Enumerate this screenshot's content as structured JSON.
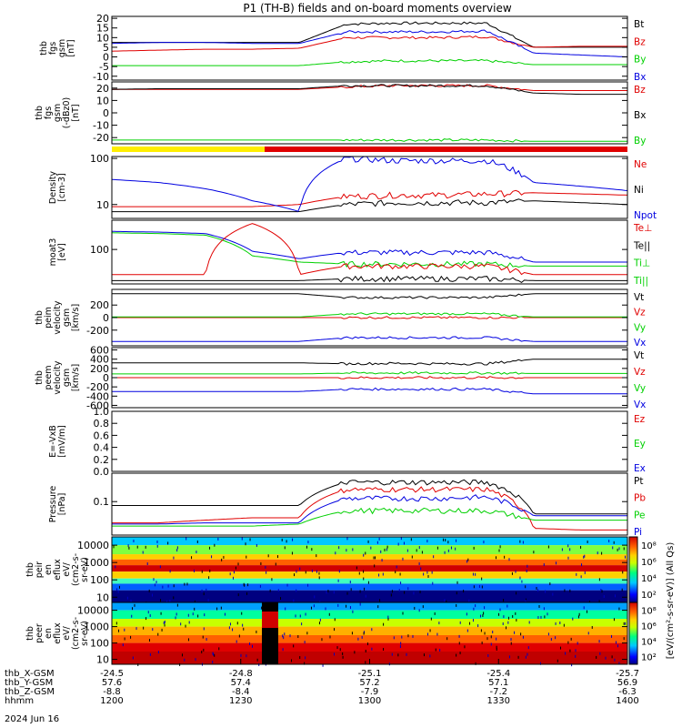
{
  "title": "P1 (TH-B) fields and on-board moments overview",
  "colors": {
    "black": "#000000",
    "red": "#e00000",
    "green": "#00d000",
    "blue": "#0000e0",
    "yellow": "#ffee00",
    "orange": "#ff8800",
    "cyan": "#00c8ff"
  },
  "chart_data": [
    {
      "type": "line",
      "ylabel": [
        "thb",
        "fgs",
        "gsm",
        "[nT]"
      ],
      "ylim": [
        -12,
        21
      ],
      "yticks": [
        "20",
        "15",
        "10",
        "5",
        "0",
        "-5",
        "-10"
      ],
      "ytick_values": [
        20,
        15,
        10,
        5,
        0,
        -5,
        -10
      ],
      "legend": [
        {
          "label": "Bt",
          "color": "black"
        },
        {
          "label": "Bz",
          "color": "red"
        },
        {
          "label": "By",
          "color": "green"
        },
        {
          "label": "Bx",
          "color": "blue"
        }
      ],
      "series": [
        {
          "color": "black",
          "values": [
            7.5,
            7.5,
            7.5,
            7.5,
            7.5,
            17,
            17.5,
            17.5,
            17.5,
            5,
            5,
            5
          ]
        },
        {
          "color": "red",
          "values": [
            3,
            3.5,
            4,
            4,
            4.5,
            10,
            10,
            10,
            10.5,
            5,
            5.5,
            5.5
          ]
        },
        {
          "color": "green",
          "values": [
            -4.5,
            -4.5,
            -4.5,
            -4.5,
            -4.5,
            -2.5,
            -2,
            -2,
            -2,
            -4,
            -4,
            -4
          ]
        },
        {
          "color": "blue",
          "values": [
            7,
            7.5,
            7.5,
            7,
            7,
            13,
            13,
            13,
            13.5,
            2,
            1,
            0
          ]
        }
      ]
    },
    {
      "type": "line",
      "ylabel": [
        "thb",
        "fgs",
        "gsm",
        "(-dBz0)",
        "[nT]"
      ],
      "ylim": [
        -25,
        25
      ],
      "yticks": [
        "20",
        "10",
        "0",
        "-10",
        "-20"
      ],
      "ytick_values": [
        20,
        10,
        0,
        -10,
        -20
      ],
      "legend": [
        {
          "label": "Bz",
          "color": "red"
        },
        {
          "label": "Bx",
          "color": "black"
        },
        {
          "label": "By",
          "color": "green"
        }
      ],
      "series": [
        {
          "color": "red",
          "values": [
            19,
            19,
            19,
            19,
            19,
            21,
            22,
            22,
            22,
            18,
            18,
            18
          ]
        },
        {
          "color": "black",
          "values": [
            19,
            19.5,
            19.5,
            19.5,
            19.5,
            22,
            22,
            22,
            22,
            16,
            15,
            15
          ]
        },
        {
          "color": "green",
          "values": [
            -22,
            -22,
            -22,
            -22,
            -22,
            -22,
            -22,
            -22,
            -22,
            -23,
            -23,
            -23
          ]
        }
      ]
    },
    {
      "type": "line",
      "log": true,
      "ylabel": [
        "Density",
        "[cm-3]"
      ],
      "ylim": [
        5,
        110
      ],
      "yticks": [
        "100",
        "10"
      ],
      "ytick_values": [
        100,
        10
      ],
      "legend": [
        {
          "label": "Ne",
          "color": "red"
        },
        {
          "label": "Ni",
          "color": "black"
        },
        {
          "label": "Npot",
          "color": "blue"
        }
      ],
      "series": [
        {
          "color": "red",
          "values": [
            9,
            9,
            9,
            9,
            10,
            15,
            16,
            16,
            17,
            18,
            17,
            16
          ]
        },
        {
          "color": "black",
          "values": [
            7,
            7,
            7,
            7,
            7,
            10,
            11,
            11,
            11,
            12,
            11,
            10
          ]
        },
        {
          "color": "blue",
          "values": [
            35,
            30,
            22,
            12,
            7,
            100,
            90,
            90,
            90,
            30,
            25,
            20
          ]
        }
      ]
    },
    {
      "type": "line",
      "log": true,
      "ylabel": [
        "moat3",
        "[eV]"
      ],
      "ylim": [
        15,
        500
      ],
      "yticks": [
        "100"
      ],
      "ytick_values": [
        100
      ],
      "legend": [
        {
          "label": "Te⊥",
          "color": "red"
        },
        {
          "label": "Te||",
          "color": "black"
        },
        {
          "label": "Ti⊥",
          "color": "green"
        },
        {
          "label": "Ti||",
          "color": "green"
        }
      ],
      "series": [
        {
          "color": "blue",
          "values": [
            270,
            260,
            240,
            90,
            60,
            85,
            85,
            85,
            85,
            50,
            50,
            50
          ]
        },
        {
          "color": "green",
          "values": [
            250,
            240,
            220,
            70,
            50,
            45,
            45,
            45,
            45,
            40,
            40,
            40
          ]
        },
        {
          "color": "red",
          "values": [
            25,
            25,
            25,
            420,
            25,
            40,
            40,
            40,
            40,
            25,
            25,
            25
          ]
        },
        {
          "color": "black",
          "values": [
            18,
            18,
            18,
            18,
            18,
            20,
            20,
            20,
            20,
            18,
            18,
            18
          ]
        }
      ]
    },
    {
      "type": "line",
      "ylabel": [
        "thb",
        "peim",
        "velocity",
        "gsm",
        "[km/s]"
      ],
      "ylim": [
        -450,
        450
      ],
      "yticks": [
        "200",
        "0",
        "-200"
      ],
      "ytick_values": [
        200,
        0,
        -200
      ],
      "legend": [
        {
          "label": "Vt",
          "color": "black"
        },
        {
          "label": "Vz",
          "color": "red"
        },
        {
          "label": "Vy",
          "color": "green"
        },
        {
          "label": "Vx",
          "color": "blue"
        }
      ],
      "series": [
        {
          "color": "black",
          "values": [
            380,
            380,
            380,
            380,
            380,
            320,
            320,
            320,
            320,
            380,
            380,
            380
          ]
        },
        {
          "color": "red",
          "values": [
            0,
            0,
            0,
            0,
            0,
            0,
            0,
            0,
            0,
            0,
            0,
            0
          ]
        },
        {
          "color": "green",
          "values": [
            10,
            10,
            10,
            10,
            10,
            60,
            60,
            60,
            60,
            10,
            10,
            10
          ]
        },
        {
          "color": "blue",
          "values": [
            -380,
            -380,
            -380,
            -380,
            -380,
            -320,
            -320,
            -320,
            -320,
            -380,
            -380,
            -380
          ]
        }
      ]
    },
    {
      "type": "line",
      "ylabel": [
        "thb",
        "peem",
        "velocity",
        "gsm",
        "[km/s]"
      ],
      "ylim": [
        -650,
        650
      ],
      "yticks": [
        "600",
        "400",
        "200",
        "0",
        "-200",
        "-400",
        "-600"
      ],
      "ytick_values": [
        600,
        400,
        200,
        0,
        -200,
        -400,
        -600
      ],
      "legend": [
        {
          "label": "Vt",
          "color": "black"
        },
        {
          "label": "Vz",
          "color": "red"
        },
        {
          "label": "Vy",
          "color": "green"
        },
        {
          "label": "Vx",
          "color": "blue"
        }
      ],
      "series": [
        {
          "color": "black",
          "values": [
            320,
            320,
            320,
            320,
            320,
            300,
            310,
            300,
            300,
            400,
            400,
            400
          ]
        },
        {
          "color": "red",
          "values": [
            0,
            0,
            0,
            0,
            0,
            0,
            0,
            0,
            0,
            0,
            0,
            0
          ]
        },
        {
          "color": "green",
          "values": [
            80,
            80,
            80,
            80,
            80,
            100,
            100,
            100,
            100,
            90,
            90,
            90
          ]
        },
        {
          "color": "blue",
          "values": [
            -300,
            -300,
            -300,
            -300,
            -300,
            -250,
            -250,
            -250,
            -250,
            -350,
            -350,
            -350
          ]
        }
      ]
    },
    {
      "type": "line",
      "ylabel": [
        "E=-VxB",
        "[mV/m]"
      ],
      "ylim": [
        0,
        1
      ],
      "yticks": [
        "1.0",
        "0.8",
        "0.6",
        "0.4",
        "0.2",
        "0.0"
      ],
      "ytick_values": [
        1.0,
        0.8,
        0.6,
        0.4,
        0.2,
        0.0
      ],
      "legend": [
        {
          "label": "Ez",
          "color": "red"
        },
        {
          "label": "Ey",
          "color": "green"
        },
        {
          "label": "Ex",
          "color": "blue"
        }
      ],
      "series": []
    },
    {
      "type": "line",
      "log": true,
      "ylabel": [
        "Pressure",
        "[nPa]"
      ],
      "ylim": [
        0.015,
        0.5
      ],
      "yticks": [
        "0.1"
      ],
      "ytick_values": [
        0.1
      ],
      "legend": [
        {
          "label": "Pt",
          "color": "black"
        },
        {
          "label": "Pb",
          "color": "red"
        },
        {
          "label": "Pe",
          "color": "green"
        },
        {
          "label": "Pi",
          "color": "blue"
        }
      ],
      "series": [
        {
          "color": "black",
          "values": [
            0.08,
            0.08,
            0.08,
            0.08,
            0.08,
            0.3,
            0.3,
            0.3,
            0.3,
            0.05,
            0.05,
            0.05
          ]
        },
        {
          "color": "red",
          "values": [
            0.03,
            0.03,
            0.035,
            0.04,
            0.04,
            0.2,
            0.2,
            0.2,
            0.2,
            0.022,
            0.02,
            0.02
          ]
        },
        {
          "color": "green",
          "values": [
            0.025,
            0.025,
            0.025,
            0.025,
            0.028,
            0.06,
            0.06,
            0.06,
            0.06,
            0.035,
            0.035,
            0.035
          ]
        },
        {
          "color": "blue",
          "values": [
            0.028,
            0.028,
            0.03,
            0.03,
            0.03,
            0.12,
            0.12,
            0.12,
            0.13,
            0.045,
            0.045,
            0.045
          ]
        }
      ]
    },
    {
      "type": "heatmap",
      "log": true,
      "ylabel": [
        "thb",
        "peir",
        "en",
        "eflux",
        "eV/",
        "(cm2-s-",
        "sr-eV)"
      ],
      "yticks": [
        "10000",
        "1000",
        "100",
        "10"
      ],
      "ytick_values": [
        10000,
        1000,
        100,
        10
      ],
      "colorbar_ticks": [
        "10⁸",
        "10⁶",
        "10⁴",
        "10²"
      ],
      "colorbar_ticks_values": [
        8,
        6,
        4,
        2
      ]
    },
    {
      "type": "heatmap",
      "log": true,
      "ylabel": [
        "thb",
        "peer",
        "en",
        "eflux",
        "eV/",
        "(cm2-s-",
        "sr-eV)"
      ],
      "yticks": [
        "10000",
        "1000",
        "100",
        "10"
      ],
      "ytick_values": [
        10000,
        1000,
        100,
        10
      ],
      "colorbar_ticks": [
        "10⁸",
        "10⁶",
        "10⁴",
        "10²"
      ],
      "colorbar_ticks_values": [
        8,
        6,
        4,
        2
      ]
    }
  ],
  "colorbar_label": "[eV/(cm²-s-sr-eV)] (All Qs)",
  "time_axis": {
    "rows": [
      {
        "label": "thb_X-GSM",
        "values": [
          "-24.5",
          "-24.8",
          "-25.1",
          "-25.4",
          "-25.7"
        ]
      },
      {
        "label": "thb_Y-GSM",
        "values": [
          "57.6",
          "57.4",
          "57.2",
          "57.1",
          "56.9"
        ]
      },
      {
        "label": "thb_Z-GSM",
        "values": [
          "-8.8",
          "-8.4",
          "-7.9",
          "-7.2",
          "-6.3"
        ]
      },
      {
        "label": "hhmm",
        "values": [
          "1200",
          "1230",
          "1300",
          "1330",
          "1400"
        ]
      }
    ],
    "date": "2024 Jun 16"
  }
}
